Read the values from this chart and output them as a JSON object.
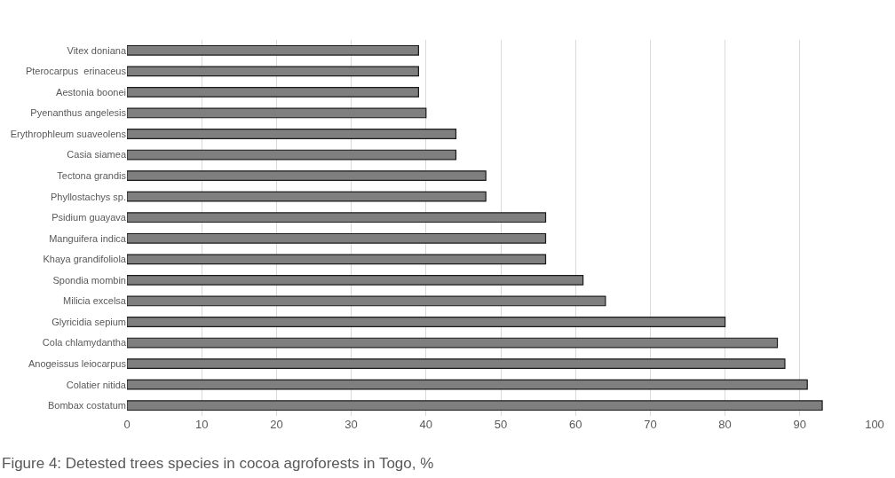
{
  "chart_data": {
    "type": "bar",
    "orientation": "horizontal",
    "title": "Figure 4: Detested trees species in cocoa agroforests in Togo, %",
    "categories": [
      "Vitex doniana",
      "Pterocarpus  erinaceus",
      "Aestonia boonei",
      "Pyenanthus angelesis",
      "Erythrophleum suaveolens",
      "Casia siamea",
      "Tectona grandis",
      "Phyllostachys sp.",
      "Psidium guayava",
      "Manguifera indica",
      "Khaya grandifoliola",
      "Spondia mombin",
      "Milicia excelsa",
      "Glyricidia sepium",
      "Cola chlamydantha",
      "Anogeissus leiocarpus",
      "Colatier nitida",
      "Bombax costatum"
    ],
    "values": [
      39,
      39,
      39,
      40,
      44,
      44,
      48,
      48,
      56,
      56,
      56,
      61,
      64,
      80,
      87,
      88,
      91,
      93
    ],
    "color": "#7f7f7f",
    "xlim": [
      0,
      100
    ],
    "xticks": [
      0,
      10,
      20,
      30,
      40,
      50,
      60,
      70,
      80,
      90,
      100
    ],
    "grid": "x",
    "legend": false
  }
}
